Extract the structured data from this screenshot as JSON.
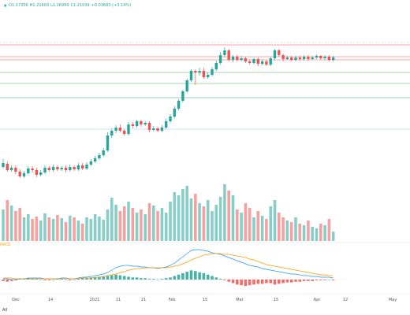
{
  "header": {
    "open": "O1.17356",
    "high": "H1.21603",
    "low": "L1.16999",
    "close": "C1.21039",
    "change": "+0.03683 (+3.14%)"
  },
  "macd_label": "MACD",
  "timeframe_button": "All",
  "colors": {
    "up": "#26a69a",
    "down": "#ef5350",
    "macd_line": "#2196f3",
    "signal_line": "#ff9800"
  },
  "chart_data": {
    "type": "candlestick",
    "x_tick_labels": [
      "Dec",
      "14",
      "2021",
      "11",
      "21",
      "Feb",
      "15",
      "Mar",
      "15",
      "Apr",
      "12",
      "May"
    ],
    "horizontal_levels": [
      {
        "color": "#ef5350"
      },
      {
        "color": "#ef5350"
      },
      {
        "color": "#ef5350"
      },
      {
        "color": "#4caf50"
      },
      {
        "color": "#4caf50"
      },
      {
        "color": "#26a69a"
      },
      {
        "color": "#90caf9"
      }
    ],
    "candles": [
      [
        212,
        207,
        202,
        214
      ],
      [
        208,
        216,
        205,
        218
      ],
      [
        216,
        213,
        210,
        218
      ],
      [
        213,
        218,
        210,
        221
      ],
      [
        218,
        224,
        215,
        226
      ],
      [
        224,
        220,
        217,
        226
      ],
      [
        220,
        214,
        211,
        222
      ],
      [
        214,
        216,
        211,
        219
      ],
      [
        216,
        222,
        213,
        225
      ],
      [
        222,
        219,
        216,
        224
      ],
      [
        219,
        213,
        210,
        221
      ],
      [
        213,
        216,
        211,
        218
      ],
      [
        216,
        212,
        209,
        218
      ],
      [
        212,
        215,
        210,
        217
      ],
      [
        215,
        213,
        211,
        217
      ],
      [
        213,
        216,
        210,
        219
      ],
      [
        216,
        212,
        209,
        218
      ],
      [
        212,
        215,
        210,
        217
      ],
      [
        215,
        210,
        207,
        217
      ],
      [
        210,
        214,
        207,
        216
      ],
      [
        214,
        209,
        206,
        216
      ],
      [
        209,
        205,
        202,
        211
      ],
      [
        205,
        201,
        198,
        207
      ],
      [
        201,
        197,
        194,
        203
      ],
      [
        197,
        191,
        188,
        199
      ],
      [
        191,
        172,
        168,
        193
      ],
      [
        172,
        166,
        163,
        175
      ],
      [
        166,
        162,
        159,
        169
      ],
      [
        162,
        166,
        158,
        168
      ],
      [
        166,
        170,
        164,
        172
      ],
      [
        170,
        158,
        155,
        172
      ],
      [
        158,
        160,
        155,
        163
      ],
      [
        160,
        154,
        152,
        162
      ],
      [
        154,
        158,
        152,
        161
      ],
      [
        158,
        156,
        154,
        160
      ],
      [
        156,
        165,
        154,
        168
      ],
      [
        165,
        163,
        160,
        167
      ],
      [
        163,
        166,
        161,
        168
      ],
      [
        166,
        162,
        159,
        168
      ],
      [
        162,
        154,
        151,
        164
      ],
      [
        154,
        148,
        145,
        156
      ],
      [
        148,
        138,
        135,
        150
      ],
      [
        138,
        128,
        126,
        140
      ],
      [
        128,
        116,
        114,
        130
      ],
      [
        116,
        102,
        100,
        118
      ],
      [
        102,
        90,
        88,
        104
      ],
      [
        90,
        92,
        88,
        108
      ],
      [
        92,
        90,
        86,
        96
      ],
      [
        90,
        98,
        86,
        100
      ],
      [
        98,
        95,
        92,
        100
      ],
      [
        95,
        88,
        85,
        97
      ],
      [
        88,
        80,
        77,
        90
      ],
      [
        80,
        70,
        66,
        82
      ],
      [
        70,
        64,
        60,
        73
      ],
      [
        64,
        76,
        62,
        78
      ],
      [
        76,
        72,
        70,
        79
      ],
      [
        72,
        76,
        70,
        78
      ],
      [
        76,
        74,
        71,
        78
      ],
      [
        74,
        78,
        72,
        80
      ],
      [
        78,
        80,
        76,
        82
      ],
      [
        80,
        75,
        73,
        82
      ],
      [
        75,
        81,
        73,
        84
      ],
      [
        81,
        78,
        76,
        83
      ],
      [
        78,
        82,
        76,
        84
      ],
      [
        82,
        74,
        72,
        84
      ],
      [
        74,
        64,
        62,
        76
      ],
      [
        64,
        70,
        62,
        72
      ],
      [
        70,
        75,
        68,
        78
      ],
      [
        75,
        73,
        71,
        76
      ],
      [
        73,
        76,
        71,
        78
      ],
      [
        76,
        73,
        71,
        78
      ],
      [
        73,
        75,
        71,
        77
      ],
      [
        75,
        72,
        70,
        77
      ],
      [
        72,
        75,
        70,
        77
      ],
      [
        75,
        73,
        71,
        76
      ],
      [
        73,
        71,
        69,
        75
      ],
      [
        71,
        74,
        70,
        76
      ],
      [
        74,
        72,
        70,
        76
      ],
      [
        72,
        76,
        70,
        78
      ],
      [
        76,
        73,
        71,
        78
      ]
    ],
    "volumes": [
      40,
      52,
      45,
      38,
      42,
      30,
      34,
      28,
      31,
      26,
      35,
      30,
      28,
      33,
      29,
      24,
      32,
      30,
      26,
      22,
      30,
      28,
      34,
      31,
      27,
      40,
      55,
      46,
      38,
      44,
      50,
      42,
      36,
      40,
      34,
      48,
      45,
      38,
      42,
      36,
      50,
      62,
      58,
      66,
      70,
      54,
      60,
      48,
      44,
      52,
      38,
      46,
      56,
      72,
      64,
      58,
      40,
      36,
      48,
      42,
      30,
      38,
      32,
      28,
      44,
      52,
      36,
      30,
      26,
      24,
      30,
      22,
      20,
      26,
      18,
      16,
      22,
      20,
      28,
      12
    ],
    "macd_hist": [
      -2,
      -3,
      -2,
      -1,
      1,
      1,
      2,
      1,
      1,
      0,
      -1,
      -1,
      0,
      1,
      1,
      0,
      -1,
      0,
      1,
      2,
      2,
      3,
      3,
      4,
      4,
      5,
      6,
      7,
      6,
      5,
      4,
      3,
      3,
      2,
      2,
      1,
      1,
      0,
      1,
      2,
      3,
      5,
      7,
      9,
      11,
      13,
      12,
      10,
      9,
      7,
      5,
      3,
      1,
      -1,
      -3,
      -5,
      -7,
      -8,
      -9,
      -8,
      -7,
      -6,
      -6,
      -5,
      -5,
      -7,
      -6,
      -5,
      -4,
      -4,
      -3,
      -3,
      -2,
      -2,
      -2,
      -1,
      -1,
      -1,
      0,
      -1
    ],
    "macd_line": [
      1,
      1,
      0,
      0,
      1,
      1,
      2,
      2,
      2,
      2,
      1,
      1,
      1,
      1,
      2,
      2,
      1,
      1,
      2,
      3,
      3,
      4,
      5,
      6,
      7,
      9,
      12,
      15,
      17,
      18,
      18,
      17,
      17,
      16,
      16,
      15,
      15,
      14,
      15,
      16,
      18,
      21,
      25,
      29,
      33,
      37,
      38,
      38,
      37,
      36,
      34,
      33,
      32,
      30,
      28,
      26,
      24,
      22,
      20,
      18,
      17,
      16,
      14,
      13,
      12,
      11,
      10,
      9,
      8,
      7,
      7,
      6,
      5,
      5,
      4,
      4,
      3,
      3,
      3,
      2
    ],
    "signal_line": [
      2,
      2,
      2,
      1,
      1,
      1,
      1,
      1,
      1,
      1,
      1,
      1,
      1,
      1,
      1,
      1,
      1,
      1,
      1,
      2,
      2,
      2,
      3,
      3,
      4,
      5,
      6,
      7,
      9,
      10,
      12,
      13,
      14,
      14,
      15,
      15,
      15,
      15,
      15,
      15,
      16,
      17,
      18,
      20,
      22,
      25,
      27,
      29,
      31,
      32,
      33,
      33,
      33,
      32,
      32,
      31,
      30,
      29,
      28,
      26,
      25,
      23,
      21,
      19,
      18,
      17,
      16,
      15,
      14,
      13,
      12,
      11,
      10,
      9,
      8,
      7,
      6,
      6,
      5,
      5
    ]
  }
}
